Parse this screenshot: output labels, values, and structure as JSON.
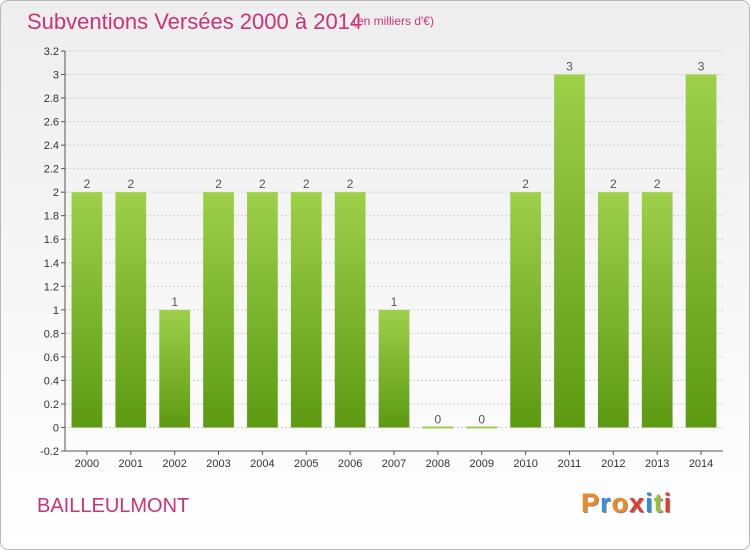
{
  "header": {
    "title": "Subventions Versées 2000 à 2014",
    "subtitle": "(en milliers d'€)"
  },
  "footer": {
    "commune": "BAILLEULMONT",
    "logo_letters": [
      "P",
      "r",
      "o",
      "x",
      "i",
      "t",
      "i"
    ],
    "logo_colors": [
      "#f08a1e",
      "#3a8fd9",
      "#f08a1e",
      "#e23a2e",
      "#2c8fd9",
      "#9ac13c",
      "#e23a2e"
    ]
  },
  "colors": {
    "bar_light": "#9ed04a",
    "bar_dark": "#5c9a12",
    "grid": "#cfcfcf",
    "text_accent": "#cc3377"
  },
  "chart_data": {
    "type": "bar",
    "categories": [
      "2000",
      "2001",
      "2002",
      "2003",
      "2004",
      "2005",
      "2006",
      "2007",
      "2008",
      "2009",
      "2010",
      "2011",
      "2012",
      "2013",
      "2014"
    ],
    "values": [
      2,
      2,
      1,
      2,
      2,
      2,
      2,
      1,
      0,
      0,
      2,
      3,
      2,
      2,
      3
    ],
    "data_labels": [
      "2",
      "2",
      "1",
      "2",
      "2",
      "2",
      "2",
      "1",
      "0",
      "0",
      "2",
      "3",
      "2",
      "2",
      "3"
    ],
    "y_ticks": [
      -0.2,
      0,
      0.2,
      0.4,
      0.6,
      0.8,
      1,
      1.2,
      1.4,
      1.6,
      1.8,
      2,
      2.2,
      2.4,
      2.6,
      2.8,
      3,
      3.2
    ],
    "y_tick_labels": [
      "-0.2",
      "0",
      "0.2",
      "0.4",
      "0.6",
      "0.8",
      "1",
      "1.2",
      "1.4",
      "1.6",
      "1.8",
      "2",
      "2.2",
      "2.4",
      "2.6",
      "2.8",
      "3",
      "3.2"
    ],
    "ylim": [
      -0.2,
      3.2
    ],
    "grid": true,
    "title": "Subventions Versées 2000 à 2014",
    "xlabel": "",
    "ylabel": ""
  }
}
